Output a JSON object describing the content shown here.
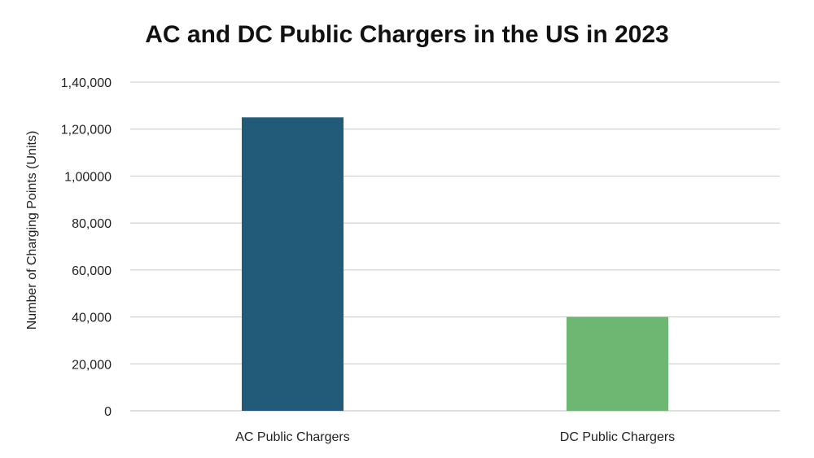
{
  "chart_data": {
    "type": "bar",
    "title": "AC and DC Public Chargers in the US in 2023",
    "xlabel": "",
    "ylabel": "Number of Charging Points (Units)",
    "categories": [
      "AC Public Chargers",
      "DC Public Chargers"
    ],
    "values": [
      125000,
      40000
    ],
    "ylim": [
      0,
      140000
    ],
    "yticks": [
      0,
      20000,
      40000,
      60000,
      80000,
      100000,
      120000,
      140000
    ],
    "ytick_labels": [
      "0",
      "20,000",
      "40,000",
      "60,000",
      "80,000",
      "1,00000",
      "1,20,000",
      "1,40,000"
    ],
    "bar_colors": [
      "#225a7a",
      "#6db773"
    ],
    "grid": true,
    "legend": "none"
  },
  "colors": {
    "grid": "#c8c8c8",
    "axis": "#bdbdbd",
    "text": "#222222"
  }
}
